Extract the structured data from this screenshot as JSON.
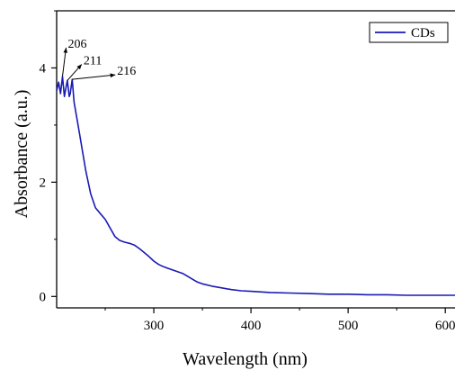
{
  "chart_data": {
    "type": "line",
    "xlabel": "Wavelength (nm)",
    "ylabel": "Absorbance (a.u.)",
    "xlim": [
      200,
      610
    ],
    "ylim": [
      -0.2,
      5.0
    ],
    "x_ticks": [
      300,
      400,
      500,
      600
    ],
    "x_tick_labels": [
      "300",
      "400",
      "500",
      "600"
    ],
    "y_ticks": [
      0,
      2,
      4
    ],
    "y_tick_labels": [
      "0",
      "2",
      "4"
    ],
    "legend": {
      "position": "top-right",
      "entries": [
        "CDs"
      ]
    },
    "grid": false,
    "series": [
      {
        "name": "CDs",
        "color": "#1a1ab4",
        "x": [
          200,
          202,
          204,
          206,
          208,
          209,
          211,
          213,
          214,
          216,
          218,
          220,
          223,
          226,
          230,
          235,
          240,
          245,
          250,
          255,
          260,
          265,
          270,
          275,
          280,
          285,
          290,
          295,
          300,
          305,
          310,
          315,
          320,
          325,
          330,
          335,
          340,
          345,
          350,
          360,
          370,
          380,
          390,
          400,
          420,
          440,
          460,
          480,
          500,
          520,
          540,
          560,
          580,
          600,
          610
        ],
        "y": [
          3.6,
          3.75,
          3.55,
          3.85,
          3.5,
          3.6,
          3.78,
          3.5,
          3.55,
          3.8,
          3.4,
          3.2,
          2.9,
          2.6,
          2.2,
          1.8,
          1.55,
          1.45,
          1.35,
          1.2,
          1.05,
          0.98,
          0.95,
          0.93,
          0.9,
          0.84,
          0.77,
          0.7,
          0.62,
          0.56,
          0.52,
          0.49,
          0.46,
          0.43,
          0.4,
          0.35,
          0.3,
          0.25,
          0.22,
          0.18,
          0.15,
          0.12,
          0.1,
          0.09,
          0.07,
          0.06,
          0.05,
          0.04,
          0.04,
          0.03,
          0.03,
          0.02,
          0.02,
          0.02,
          0.02
        ]
      }
    ],
    "annotations": [
      {
        "text": "206",
        "x": 206,
        "y": 3.85
      },
      {
        "text": "211",
        "x": 211,
        "y": 3.78
      },
      {
        "text": "216",
        "x": 216,
        "y": 3.8
      }
    ]
  }
}
